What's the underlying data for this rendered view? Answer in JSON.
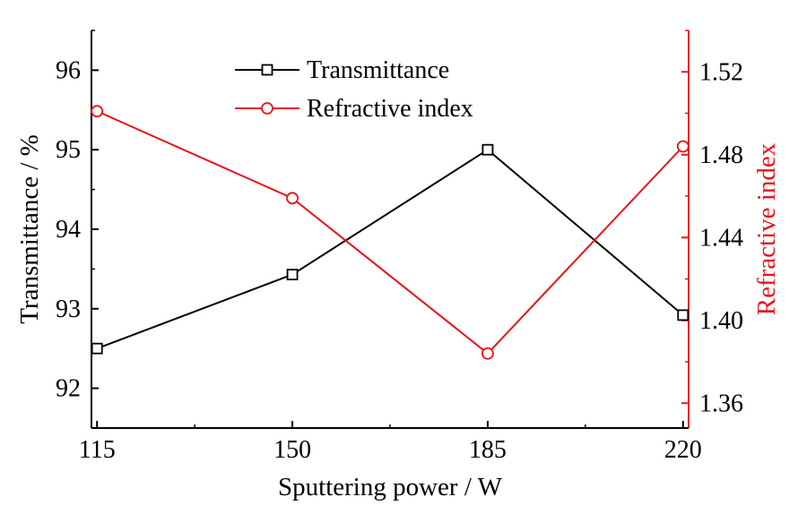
{
  "chart_data": {
    "type": "line",
    "x": [
      115,
      150,
      185,
      220
    ],
    "xlabel": "Sputtering power / W",
    "xticks": [
      "115",
      "150",
      "185",
      "220"
    ],
    "xlim": [
      114,
      221
    ],
    "colors": {
      "transmittance": "#000000",
      "refractive": "#e8141c"
    },
    "left_axis": {
      "label": "Transmittance / %",
      "ticks": [
        "92",
        "93",
        "94",
        "95",
        "96"
      ],
      "ylim": [
        91.5,
        96.5
      ]
    },
    "right_axis": {
      "label": "Refractive index",
      "ticks": [
        "1.36",
        "1.40",
        "1.44",
        "1.48",
        "1.52"
      ],
      "ylim": [
        1.348,
        1.54
      ]
    },
    "series": [
      {
        "name": "Transmittance",
        "axis": "left",
        "marker": "square",
        "values": [
          92.5,
          93.43,
          95.0,
          92.92
        ]
      },
      {
        "name": "Refractive index",
        "axis": "right",
        "marker": "circle",
        "values": [
          1.501,
          1.459,
          1.384,
          1.484
        ]
      }
    ],
    "legend_position": "top-left inside",
    "grid": false
  }
}
